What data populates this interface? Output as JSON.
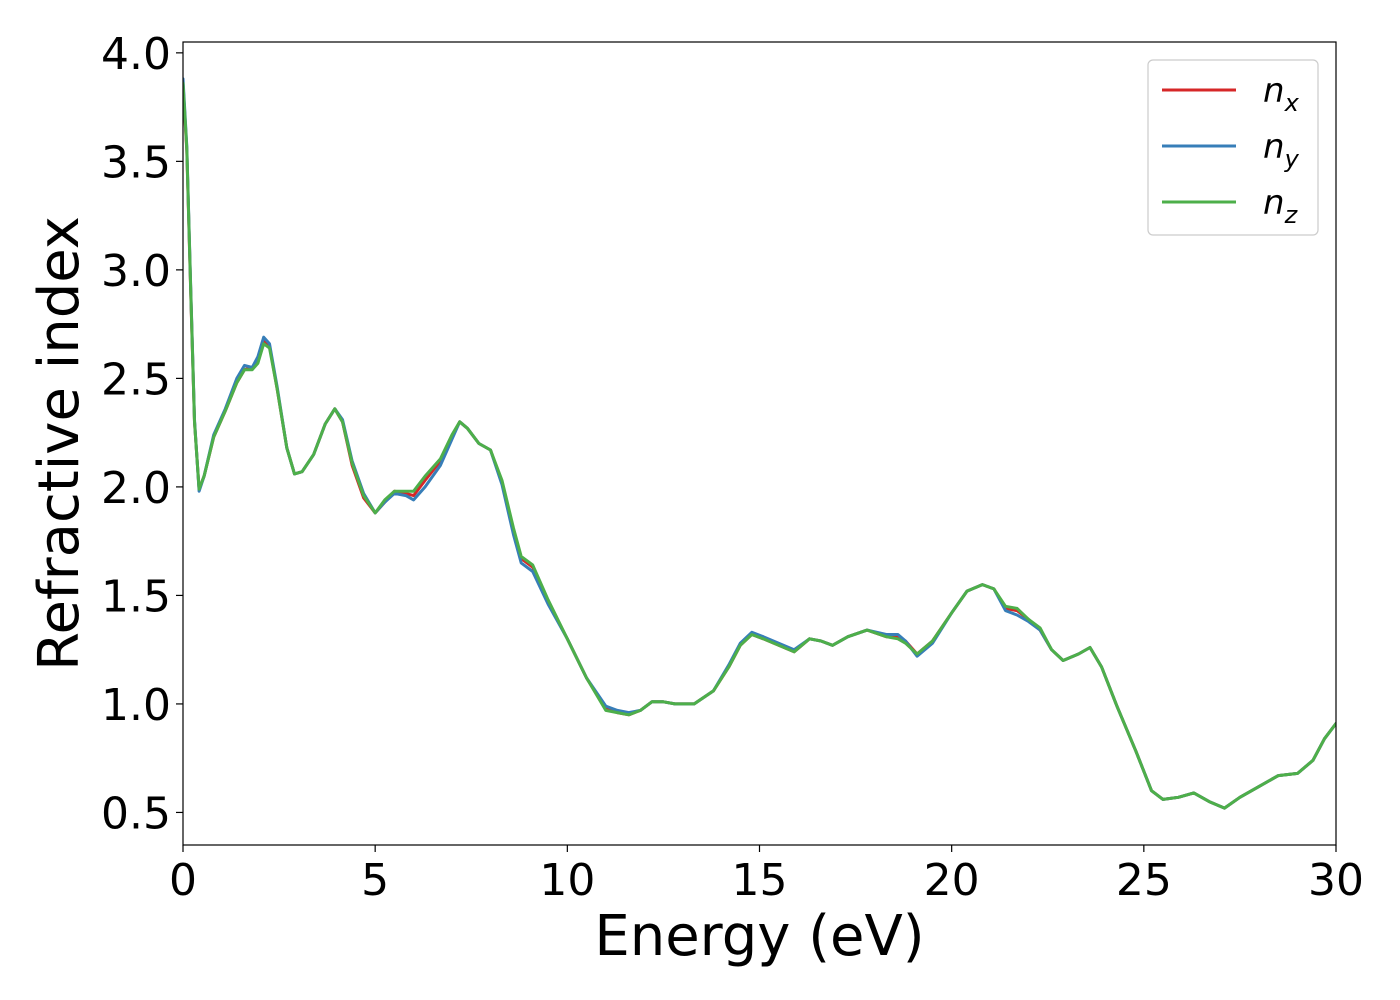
{
  "chart_data": {
    "type": "line",
    "title": "",
    "xlabel": "Energy (eV)",
    "ylabel": "Refractive index",
    "xlim": [
      0,
      30
    ],
    "ylim": [
      0.35,
      4.05
    ],
    "xticks": [
      0,
      5,
      10,
      15,
      20,
      25,
      30
    ],
    "xtick_labels": [
      "0",
      "5",
      "10",
      "15",
      "20",
      "25",
      "30"
    ],
    "yticks": [
      0.5,
      1.0,
      1.5,
      2.0,
      2.5,
      3.0,
      3.5,
      4.0
    ],
    "ytick_labels": [
      "0.5",
      "1.0",
      "1.5",
      "2.0",
      "2.5",
      "3.0",
      "3.5",
      "4.0"
    ],
    "grid": false,
    "legend_position": "top-right",
    "series": [
      {
        "name": "n",
        "subscript": "x",
        "color": "#d62728",
        "points": [
          [
            0,
            3.85
          ],
          [
            0.1,
            3.55
          ],
          [
            0.2,
            2.9
          ],
          [
            0.3,
            2.3
          ],
          [
            0.42,
            1.99
          ],
          [
            0.55,
            2.05
          ],
          [
            0.8,
            2.23
          ],
          [
            1.1,
            2.35
          ],
          [
            1.4,
            2.48
          ],
          [
            1.6,
            2.54
          ],
          [
            1.8,
            2.55
          ],
          [
            1.95,
            2.58
          ],
          [
            2.1,
            2.67
          ],
          [
            2.25,
            2.65
          ],
          [
            2.45,
            2.45
          ],
          [
            2.7,
            2.18
          ],
          [
            2.9,
            2.06
          ],
          [
            3.1,
            2.07
          ],
          [
            3.4,
            2.15
          ],
          [
            3.7,
            2.29
          ],
          [
            3.95,
            2.36
          ],
          [
            4.15,
            2.3
          ],
          [
            4.4,
            2.1
          ],
          [
            4.7,
            1.95
          ],
          [
            5.0,
            1.88
          ],
          [
            5.25,
            1.93
          ],
          [
            5.5,
            1.98
          ],
          [
            5.8,
            1.97
          ],
          [
            6.0,
            1.96
          ],
          [
            6.3,
            2.03
          ],
          [
            6.7,
            2.12
          ],
          [
            7.0,
            2.23
          ],
          [
            7.2,
            2.3
          ],
          [
            7.4,
            2.27
          ],
          [
            7.7,
            2.2
          ],
          [
            8.0,
            2.17
          ],
          [
            8.3,
            2.02
          ],
          [
            8.6,
            1.8
          ],
          [
            8.8,
            1.67
          ],
          [
            9.1,
            1.63
          ],
          [
            9.5,
            1.47
          ],
          [
            10.0,
            1.3
          ],
          [
            10.5,
            1.12
          ],
          [
            11.0,
            0.98
          ],
          [
            11.3,
            0.96
          ],
          [
            11.6,
            0.95
          ],
          [
            11.9,
            0.97
          ],
          [
            12.2,
            1.01
          ],
          [
            12.5,
            1.01
          ],
          [
            12.8,
            1.0
          ],
          [
            13.3,
            1.0
          ],
          [
            13.8,
            1.06
          ],
          [
            14.2,
            1.17
          ],
          [
            14.5,
            1.27
          ],
          [
            14.8,
            1.32
          ],
          [
            15.1,
            1.3
          ],
          [
            15.5,
            1.27
          ],
          [
            15.9,
            1.24
          ],
          [
            16.3,
            1.3
          ],
          [
            16.6,
            1.29
          ],
          [
            16.9,
            1.27
          ],
          [
            17.3,
            1.31
          ],
          [
            17.8,
            1.34
          ],
          [
            18.3,
            1.31
          ],
          [
            18.6,
            1.31
          ],
          [
            18.8,
            1.29
          ],
          [
            19.1,
            1.23
          ],
          [
            19.5,
            1.29
          ],
          [
            20.0,
            1.42
          ],
          [
            20.4,
            1.52
          ],
          [
            20.8,
            1.55
          ],
          [
            21.1,
            1.53
          ],
          [
            21.4,
            1.44
          ],
          [
            21.7,
            1.43
          ],
          [
            22.0,
            1.39
          ],
          [
            22.3,
            1.34
          ],
          [
            22.6,
            1.25
          ],
          [
            22.9,
            1.2
          ],
          [
            23.3,
            1.23
          ],
          [
            23.6,
            1.26
          ],
          [
            23.9,
            1.17
          ],
          [
            24.3,
            0.99
          ],
          [
            24.8,
            0.78
          ],
          [
            25.2,
            0.6
          ],
          [
            25.5,
            0.56
          ],
          [
            25.9,
            0.57
          ],
          [
            26.3,
            0.59
          ],
          [
            26.7,
            0.55
          ],
          [
            27.1,
            0.52
          ],
          [
            27.5,
            0.57
          ],
          [
            28.0,
            0.62
          ],
          [
            28.5,
            0.67
          ],
          [
            29.0,
            0.68
          ],
          [
            29.4,
            0.74
          ],
          [
            29.7,
            0.84
          ],
          [
            30.0,
            0.91
          ]
        ]
      },
      {
        "name": "n",
        "subscript": "y",
        "color": "#377eb8",
        "points": [
          [
            0,
            3.88
          ],
          [
            0.1,
            3.57
          ],
          [
            0.2,
            2.92
          ],
          [
            0.3,
            2.31
          ],
          [
            0.42,
            1.98
          ],
          [
            0.55,
            2.05
          ],
          [
            0.8,
            2.24
          ],
          [
            1.1,
            2.36
          ],
          [
            1.4,
            2.5
          ],
          [
            1.6,
            2.56
          ],
          [
            1.8,
            2.55
          ],
          [
            1.95,
            2.6
          ],
          [
            2.1,
            2.69
          ],
          [
            2.25,
            2.66
          ],
          [
            2.45,
            2.46
          ],
          [
            2.7,
            2.18
          ],
          [
            2.9,
            2.06
          ],
          [
            3.1,
            2.07
          ],
          [
            3.4,
            2.15
          ],
          [
            3.7,
            2.29
          ],
          [
            3.95,
            2.36
          ],
          [
            4.15,
            2.31
          ],
          [
            4.4,
            2.12
          ],
          [
            4.7,
            1.97
          ],
          [
            5.0,
            1.88
          ],
          [
            5.25,
            1.93
          ],
          [
            5.5,
            1.97
          ],
          [
            5.8,
            1.96
          ],
          [
            6.0,
            1.94
          ],
          [
            6.3,
            2.0
          ],
          [
            6.7,
            2.1
          ],
          [
            7.0,
            2.22
          ],
          [
            7.2,
            2.3
          ],
          [
            7.4,
            2.27
          ],
          [
            7.7,
            2.2
          ],
          [
            8.0,
            2.17
          ],
          [
            8.3,
            2.01
          ],
          [
            8.6,
            1.78
          ],
          [
            8.8,
            1.65
          ],
          [
            9.1,
            1.61
          ],
          [
            9.5,
            1.46
          ],
          [
            10.0,
            1.3
          ],
          [
            10.5,
            1.12
          ],
          [
            11.0,
            0.99
          ],
          [
            11.3,
            0.97
          ],
          [
            11.6,
            0.96
          ],
          [
            11.9,
            0.97
          ],
          [
            12.2,
            1.01
          ],
          [
            12.5,
            1.01
          ],
          [
            12.8,
            1.0
          ],
          [
            13.3,
            1.0
          ],
          [
            13.8,
            1.06
          ],
          [
            14.2,
            1.18
          ],
          [
            14.5,
            1.28
          ],
          [
            14.8,
            1.33
          ],
          [
            15.1,
            1.31
          ],
          [
            15.5,
            1.28
          ],
          [
            15.9,
            1.25
          ],
          [
            16.3,
            1.3
          ],
          [
            16.6,
            1.29
          ],
          [
            16.9,
            1.27
          ],
          [
            17.3,
            1.31
          ],
          [
            17.8,
            1.34
          ],
          [
            18.3,
            1.32
          ],
          [
            18.6,
            1.32
          ],
          [
            18.8,
            1.29
          ],
          [
            19.1,
            1.22
          ],
          [
            19.5,
            1.28
          ],
          [
            20.0,
            1.42
          ],
          [
            20.4,
            1.52
          ],
          [
            20.8,
            1.55
          ],
          [
            21.1,
            1.53
          ],
          [
            21.4,
            1.43
          ],
          [
            21.7,
            1.41
          ],
          [
            22.0,
            1.38
          ],
          [
            22.3,
            1.34
          ],
          [
            22.6,
            1.25
          ],
          [
            22.9,
            1.2
          ],
          [
            23.3,
            1.23
          ],
          [
            23.6,
            1.26
          ],
          [
            23.9,
            1.17
          ],
          [
            24.3,
            0.99
          ],
          [
            24.8,
            0.78
          ],
          [
            25.2,
            0.6
          ],
          [
            25.5,
            0.56
          ],
          [
            25.9,
            0.57
          ],
          [
            26.3,
            0.59
          ],
          [
            26.7,
            0.55
          ],
          [
            27.1,
            0.52
          ],
          [
            27.5,
            0.57
          ],
          [
            28.0,
            0.62
          ],
          [
            28.5,
            0.67
          ],
          [
            29.0,
            0.68
          ],
          [
            29.4,
            0.74
          ],
          [
            29.7,
            0.84
          ],
          [
            30.0,
            0.91
          ]
        ]
      },
      {
        "name": "n",
        "subscript": "z",
        "color": "#4daf4a",
        "points": [
          [
            0,
            3.86
          ],
          [
            0.1,
            3.56
          ],
          [
            0.2,
            2.91
          ],
          [
            0.3,
            2.3
          ],
          [
            0.42,
            1.99
          ],
          [
            0.55,
            2.05
          ],
          [
            0.8,
            2.23
          ],
          [
            1.1,
            2.35
          ],
          [
            1.4,
            2.48
          ],
          [
            1.6,
            2.54
          ],
          [
            1.8,
            2.54
          ],
          [
            1.95,
            2.57
          ],
          [
            2.1,
            2.66
          ],
          [
            2.25,
            2.64
          ],
          [
            2.45,
            2.45
          ],
          [
            2.7,
            2.18
          ],
          [
            2.9,
            2.06
          ],
          [
            3.1,
            2.07
          ],
          [
            3.4,
            2.15
          ],
          [
            3.7,
            2.29
          ],
          [
            3.95,
            2.36
          ],
          [
            4.15,
            2.3
          ],
          [
            4.4,
            2.11
          ],
          [
            4.7,
            1.96
          ],
          [
            5.0,
            1.88
          ],
          [
            5.25,
            1.94
          ],
          [
            5.5,
            1.98
          ],
          [
            5.8,
            1.98
          ],
          [
            6.0,
            1.98
          ],
          [
            6.3,
            2.05
          ],
          [
            6.7,
            2.13
          ],
          [
            7.0,
            2.24
          ],
          [
            7.2,
            2.3
          ],
          [
            7.4,
            2.27
          ],
          [
            7.7,
            2.2
          ],
          [
            8.0,
            2.17
          ],
          [
            8.3,
            2.03
          ],
          [
            8.6,
            1.81
          ],
          [
            8.8,
            1.68
          ],
          [
            9.1,
            1.64
          ],
          [
            9.5,
            1.48
          ],
          [
            10.0,
            1.3
          ],
          [
            10.5,
            1.12
          ],
          [
            11.0,
            0.97
          ],
          [
            11.3,
            0.96
          ],
          [
            11.6,
            0.95
          ],
          [
            11.9,
            0.97
          ],
          [
            12.2,
            1.01
          ],
          [
            12.5,
            1.01
          ],
          [
            12.8,
            1.0
          ],
          [
            13.3,
            1.0
          ],
          [
            13.8,
            1.06
          ],
          [
            14.2,
            1.17
          ],
          [
            14.5,
            1.27
          ],
          [
            14.8,
            1.32
          ],
          [
            15.1,
            1.3
          ],
          [
            15.5,
            1.27
          ],
          [
            15.9,
            1.24
          ],
          [
            16.3,
            1.3
          ],
          [
            16.6,
            1.29
          ],
          [
            16.9,
            1.27
          ],
          [
            17.3,
            1.31
          ],
          [
            17.8,
            1.34
          ],
          [
            18.3,
            1.31
          ],
          [
            18.6,
            1.3
          ],
          [
            18.8,
            1.28
          ],
          [
            19.1,
            1.23
          ],
          [
            19.5,
            1.29
          ],
          [
            20.0,
            1.42
          ],
          [
            20.4,
            1.52
          ],
          [
            20.8,
            1.55
          ],
          [
            21.1,
            1.53
          ],
          [
            21.4,
            1.45
          ],
          [
            21.7,
            1.44
          ],
          [
            22.0,
            1.39
          ],
          [
            22.3,
            1.35
          ],
          [
            22.6,
            1.25
          ],
          [
            22.9,
            1.2
          ],
          [
            23.3,
            1.23
          ],
          [
            23.6,
            1.26
          ],
          [
            23.9,
            1.17
          ],
          [
            24.3,
            0.99
          ],
          [
            24.8,
            0.78
          ],
          [
            25.2,
            0.6
          ],
          [
            25.5,
            0.56
          ],
          [
            25.9,
            0.57
          ],
          [
            26.3,
            0.59
          ],
          [
            26.7,
            0.55
          ],
          [
            27.1,
            0.52
          ],
          [
            27.5,
            0.57
          ],
          [
            28.0,
            0.62
          ],
          [
            28.5,
            0.67
          ],
          [
            29.0,
            0.68
          ],
          [
            29.4,
            0.74
          ],
          [
            29.7,
            0.84
          ],
          [
            30.0,
            0.91
          ]
        ]
      }
    ]
  }
}
